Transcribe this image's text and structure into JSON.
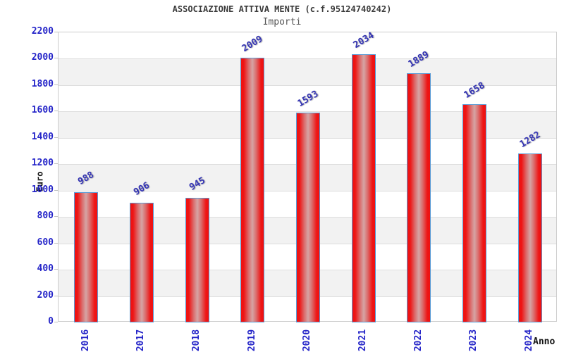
{
  "header": {
    "title": "ASSOCIAZIONE ATTIVA MENTE (c.f.95124740242)",
    "subtitle": "Importi"
  },
  "chart_data": {
    "type": "bar",
    "title": "ASSOCIAZIONE ATTIVA MENTE (c.f.95124740242)",
    "subtitle": "Importi",
    "categories": [
      "2016",
      "2017",
      "2018",
      "2019",
      "2020",
      "2021",
      "2022",
      "2023",
      "2024"
    ],
    "values": [
      988,
      906,
      945,
      2009,
      1593,
      2034,
      1889,
      1658,
      1282
    ],
    "xlabel": "Anno",
    "ylabel": "Euro",
    "ylim": [
      0,
      2200
    ],
    "ytick_step": 200,
    "legend": "none",
    "grid": "horizontal gridlines with alternating gray bands",
    "colors": {
      "bar_edge_red": "#ee1414",
      "bar_center": "#d6a4a4",
      "bar_border_blue": "#5b9bd5",
      "tick_label_blue": "#2424c8",
      "value_label_blue": "#3232b4",
      "band_gray": "#f2f2f2",
      "gridline": "#dedede",
      "plot_border": "#cbcbcb",
      "title_color": "#3a3a3a",
      "subtitle_color": "#585858",
      "axis_title_color": "#141414",
      "background": "#ffffff"
    }
  }
}
